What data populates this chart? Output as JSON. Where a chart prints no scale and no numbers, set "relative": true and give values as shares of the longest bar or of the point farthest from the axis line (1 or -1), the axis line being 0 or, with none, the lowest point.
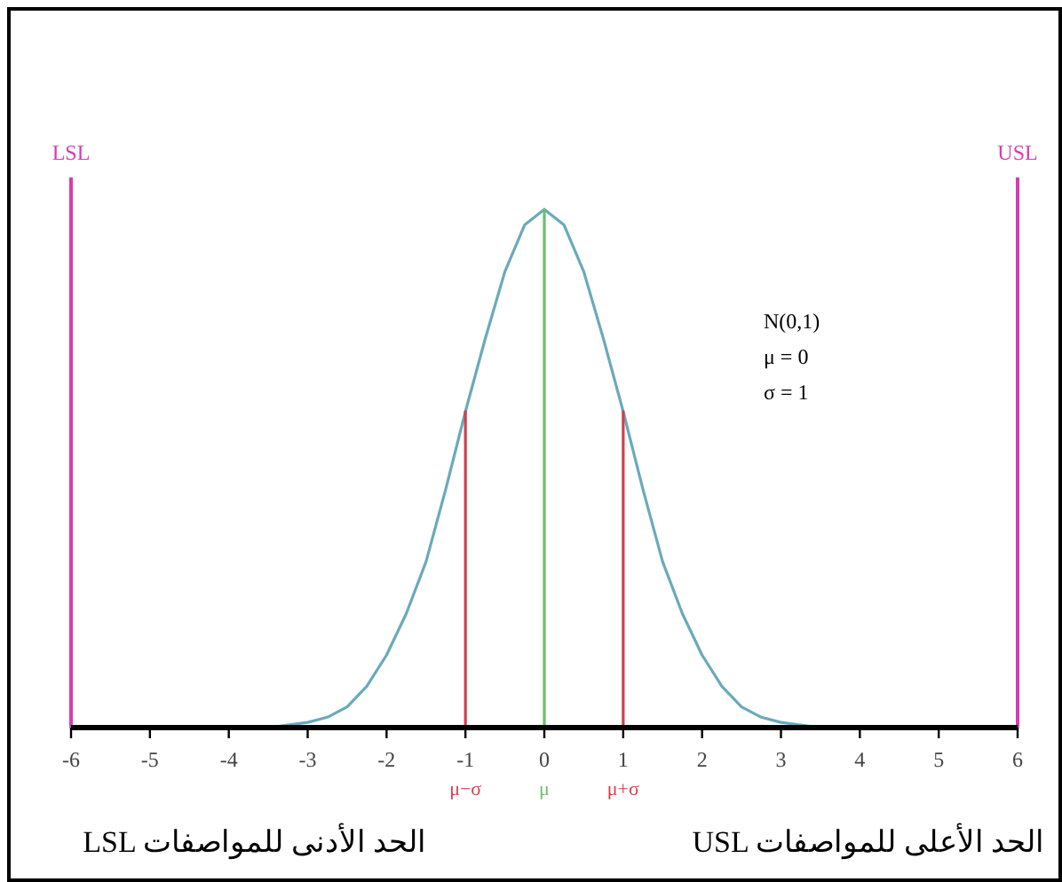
{
  "chart_data": {
    "type": "line",
    "relative": true,
    "xlim": [
      -6,
      6
    ],
    "xticks": [
      -6,
      -5,
      -4,
      -3,
      -2,
      -1,
      0,
      1,
      2,
      3,
      4,
      5,
      6
    ],
    "grid": false,
    "line_style": "solid",
    "series": [
      {
        "color": "#6aaabb",
        "x": [
          -6,
          -4,
          -3.5,
          -3,
          -2.75,
          -2.5,
          -2.25,
          -2,
          -1.75,
          -1.5,
          -1.25,
          -1,
          -0.75,
          -0.5,
          -0.25,
          0,
          0.25,
          0.5,
          0.75,
          1,
          1.25,
          1.5,
          1.75,
          2,
          2.25,
          2.5,
          2.75,
          3,
          3.5,
          4,
          6
        ],
        "values": [
          0,
          0,
          0,
          0.01,
          0.02,
          0.04,
          0.08,
          0.14,
          0.22,
          0.32,
          0.46,
          0.61,
          0.75,
          0.88,
          0.97,
          1,
          0.97,
          0.88,
          0.75,
          0.61,
          0.46,
          0.32,
          0.22,
          0.14,
          0.08,
          0.04,
          0.02,
          0.01,
          0,
          0,
          0
        ]
      },
      {
        "name": "μ−σ",
        "color": "#d0404a",
        "x": [
          -1,
          -1
        ],
        "values": [
          0,
          0.61
        ]
      },
      {
        "name": "μ",
        "color": "#6cbf6c",
        "x": [
          0,
          0
        ],
        "values": [
          0,
          1
        ]
      },
      {
        "name": "μ+σ",
        "color": "#d0404a",
        "x": [
          1,
          1
        ],
        "values": [
          0,
          0.61
        ]
      }
    ],
    "ref_lines": [
      {
        "axis": "x",
        "value": -6,
        "label": "LSL",
        "color": "#d63cb4"
      },
      {
        "axis": "x",
        "value": 6,
        "label": "USL",
        "color": "#d63cb4"
      }
    ],
    "annotations": [
      "N(0,1)",
      "μ = 0",
      "σ = 1",
      "USL الحد الأعلى للمواصفات",
      "LSL الحد الأدنى للمواصفات"
    ]
  }
}
